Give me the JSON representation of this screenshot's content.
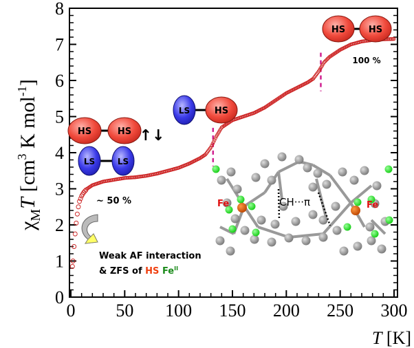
{
  "chart_data": {
    "type": "scatter",
    "title": "",
    "xlabel": "T [K]",
    "ylabel": "χMT [cm3 K mol-1]",
    "ylabel_parts": {
      "chi": "χ",
      "sub": "M",
      "T": "T",
      "units_open": "[cm",
      "sup3": "3",
      "units_mid": " K mol",
      "supneg": "-1",
      "units_close": "]"
    },
    "xlabel_parts": {
      "T": "T",
      "units": "[K]"
    },
    "xlim": [
      0,
      300
    ],
    "ylim": [
      0,
      8
    ],
    "xticks": [
      0,
      50,
      100,
      150,
      200,
      250,
      300
    ],
    "yticks": [
      0,
      1,
      2,
      3,
      4,
      5,
      6,
      7,
      8
    ],
    "grid": false,
    "marker_color": "#cc2222",
    "series": [
      {
        "name": "χMT vs T",
        "x": [
          1.5,
          2,
          3,
          4,
          5,
          6,
          7,
          8,
          10,
          12,
          15,
          20,
          25,
          30,
          40,
          50,
          60,
          70,
          80,
          90,
          100,
          110,
          120,
          125,
          130,
          135,
          140,
          150,
          160,
          170,
          180,
          190,
          200,
          210,
          220,
          225,
          230,
          235,
          240,
          250,
          260,
          270,
          280,
          290,
          300
        ],
        "y": [
          0.85,
          1.0,
          1.4,
          1.75,
          2.05,
          2.3,
          2.5,
          2.65,
          2.8,
          2.9,
          3.0,
          3.1,
          3.15,
          3.2,
          3.25,
          3.3,
          3.32,
          3.36,
          3.42,
          3.5,
          3.58,
          3.7,
          3.85,
          3.95,
          4.15,
          4.45,
          4.7,
          4.9,
          5.0,
          5.1,
          5.25,
          5.45,
          5.65,
          5.8,
          5.95,
          6.05,
          6.25,
          6.5,
          6.65,
          6.85,
          7.0,
          7.08,
          7.12,
          7.14,
          7.15
        ]
      }
    ],
    "markers_dashed_at": [
      132,
      232
    ],
    "annotations": {
      "hs": "HS",
      "ls": "LS",
      "spin_arrows": "↑↓",
      "pct50": "~ 50 %",
      "pct100": "100 %",
      "weak_line1": "Weak AF interaction",
      "weak_line2_prefix": "& ZFS of ",
      "weak_hs": "HS",
      "weak_fe": "Fe",
      "weak_fe_sup": "II",
      "fe_label": "Fe",
      "ch_pi": "CH···π"
    }
  }
}
